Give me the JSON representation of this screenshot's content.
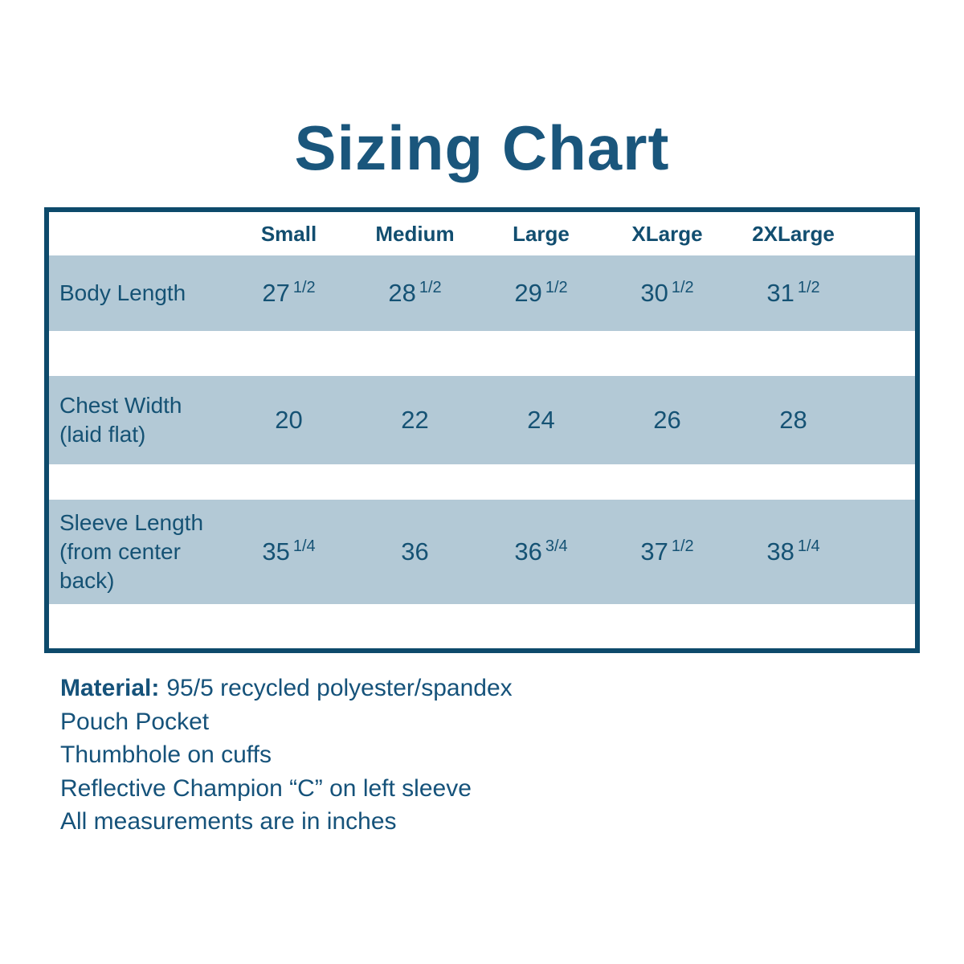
{
  "title": "Sizing Chart",
  "colors": {
    "text": "#155274",
    "title": "#1a567c",
    "table_border": "#0d4a6b",
    "row_background": "#b3c9d6"
  },
  "table": {
    "columns": [
      "Small",
      "Medium",
      "Large",
      "XLarge",
      "2XLarge"
    ],
    "rows": [
      {
        "label": "Body Length",
        "sublabel": "",
        "values": [
          {
            "whole": "27",
            "frac": "1/2"
          },
          {
            "whole": "28",
            "frac": "1/2"
          },
          {
            "whole": "29",
            "frac": "1/2"
          },
          {
            "whole": "30",
            "frac": "1/2"
          },
          {
            "whole": "31",
            "frac": "1/2"
          }
        ]
      },
      {
        "label": "Chest Width",
        "sublabel": "(laid flat)",
        "values": [
          {
            "whole": "20",
            "frac": ""
          },
          {
            "whole": "22",
            "frac": ""
          },
          {
            "whole": "24",
            "frac": ""
          },
          {
            "whole": "26",
            "frac": ""
          },
          {
            "whole": "28",
            "frac": ""
          }
        ]
      },
      {
        "label": "Sleeve Length",
        "sublabel": "(from center back)",
        "values": [
          {
            "whole": "35",
            "frac": "1/4"
          },
          {
            "whole": "36",
            "frac": ""
          },
          {
            "whole": "36",
            "frac": "3/4"
          },
          {
            "whole": "37",
            "frac": "1/2"
          },
          {
            "whole": "38",
            "frac": "1/4"
          }
        ]
      }
    ]
  },
  "notes": {
    "material_label": "Material:",
    "material_value": "95/5 recycled polyester/spandex",
    "lines": [
      "Pouch Pocket",
      "Thumbhole on cuffs",
      "Reflective Champion “C” on left sleeve",
      "All measurements are in inches"
    ]
  },
  "chart_data": {
    "type": "table",
    "title": "Sizing Chart",
    "columns": [
      "Small",
      "Medium",
      "Large",
      "XLarge",
      "2XLarge"
    ],
    "rows": [
      {
        "label": "Body Length",
        "values": [
          27.5,
          28.5,
          29.5,
          30.5,
          31.5
        ]
      },
      {
        "label": "Chest Width (laid flat)",
        "values": [
          20,
          22,
          24,
          26,
          28
        ]
      },
      {
        "label": "Sleeve Length (from center back)",
        "values": [
          35.25,
          36,
          36.75,
          37.5,
          38.25
        ]
      }
    ],
    "units": "inches"
  }
}
